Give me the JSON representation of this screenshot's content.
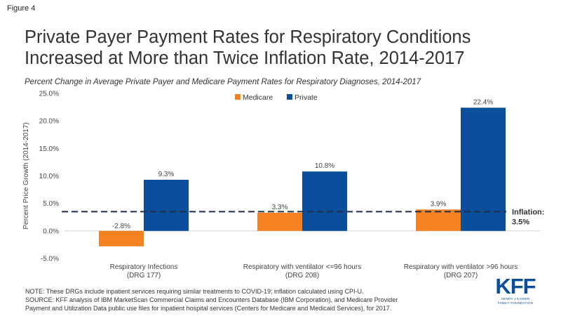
{
  "figure_label": "Figure 4",
  "title": "Private Payer Payment Rates for Respiratory Conditions Increased at More than Twice Inflation Rate, 2014-2017",
  "subtitle": "Percent Change in Average Private Payer and Medicare Payment Rates for Respiratory Diagnoses, 2014-2017",
  "notes": [
    "NOTE: These DRGs include inpatient services requiring similar treatments to COVID-19; inflation calculated using CPI-U.",
    "SOURCE: KFF analysis of IBM MarketScan Commercial Claims and Encounters Database (IBM Corporation), and Medicare Provider",
    "Payment and Utilization Data public use files for inpatient hospital services (Centers for Medicare and Medicaid Services), for 2017."
  ],
  "logo": {
    "mark": "KFF",
    "line1": "HENRY J KAISER",
    "line2": "FAMILY FOUNDATION"
  },
  "chart_data": {
    "type": "bar",
    "categories": [
      [
        "Respiratory Infections",
        "(DRG 177)"
      ],
      [
        "Respiratory with ventilator <=96 hours",
        "(DRG 208)"
      ],
      [
        "Respiratory with ventilator >96 hours",
        "(DRG 207)"
      ]
    ],
    "series": [
      {
        "name": "Medicare",
        "color": "#f58220",
        "values": [
          -2.8,
          3.3,
          3.9
        ],
        "labels": [
          "-2.8%",
          "3.3%",
          "3.9%"
        ]
      },
      {
        "name": "Private",
        "color": "#0b4f9c",
        "values": [
          9.3,
          10.8,
          22.4
        ],
        "labels": [
          "9.3%",
          "10.8%",
          "22.4%"
        ]
      }
    ],
    "ylabel": "Percent Price Growth (2014-2017)",
    "ylim": [
      -5,
      25
    ],
    "yticks": [
      -5,
      0,
      5,
      10,
      15,
      20,
      25
    ],
    "ytick_labels": [
      "-5.0%",
      "0.0%",
      "5.0%",
      "10.0%",
      "15.0%",
      "20.0%",
      "25.0%"
    ],
    "grid": false,
    "legend_position": "top-center",
    "reference_line": {
      "value": 3.5,
      "label_lines": [
        "Inflation:",
        "3.5%"
      ],
      "style": "dashed",
      "color": "#1f2d4a"
    }
  }
}
